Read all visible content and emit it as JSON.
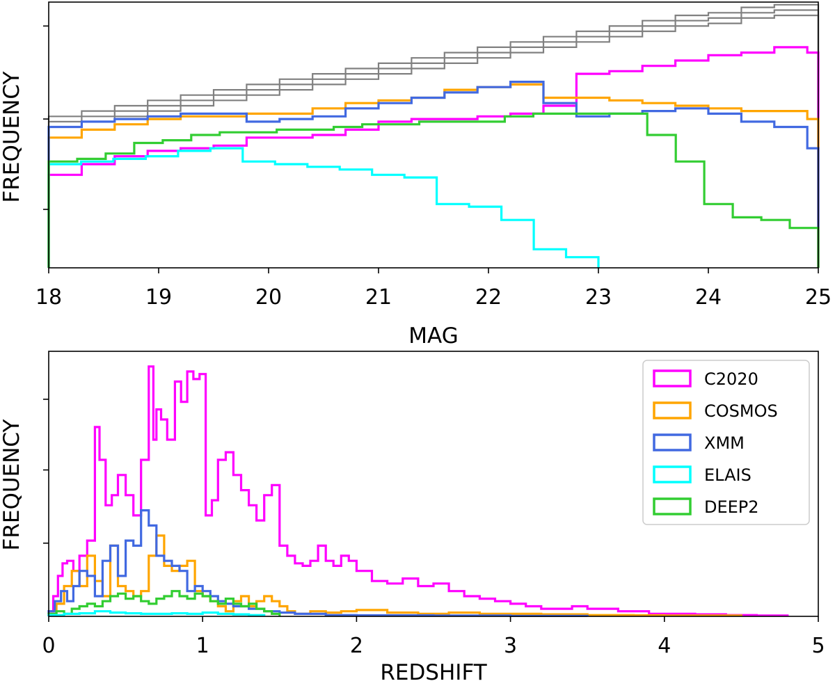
{
  "colors": {
    "C2020": "#ff00ff",
    "COSMOS": "#ffa500",
    "XMM": "#4169e1",
    "ELAIS": "#00ffff",
    "DEEP2": "#32cd32",
    "reference": "#808080"
  },
  "chart_data": [
    {
      "type": "step_histogram",
      "xlabel": "MAG",
      "ylabel": "FREQUENCY",
      "xlim": [
        18,
        25
      ],
      "ylim": [
        0,
        1
      ],
      "xticks": [
        "18",
        "19",
        "20",
        "21",
        "22",
        "23",
        "24",
        "25"
      ],
      "yticks_unlabeled": [
        0.22,
        0.56,
        0.91
      ],
      "bin_edges": [
        18,
        18.3,
        18.6,
        18.9,
        19.2,
        19.5,
        19.8,
        20.1,
        20.4,
        20.7,
        21.0,
        21.3,
        21.6,
        21.9,
        22.2,
        22.5,
        22.8,
        23.1,
        23.4,
        23.7,
        24.0,
        24.3,
        24.6,
        24.9,
        25.0
      ],
      "reference_lines": [
        {
          "offset": 0.02
        },
        {
          "offset": 0.0
        },
        {
          "offset": -0.02
        }
      ],
      "series": [
        {
          "name": "reference",
          "values": [
            0.55,
            0.57,
            0.59,
            0.61,
            0.63,
            0.65,
            0.67,
            0.69,
            0.71,
            0.73,
            0.75,
            0.77,
            0.79,
            0.81,
            0.83,
            0.85,
            0.87,
            0.89,
            0.91,
            0.93,
            0.94,
            0.96,
            0.97,
            0.97
          ]
        },
        {
          "name": "C2020",
          "values": [
            0.35,
            0.39,
            0.42,
            0.44,
            0.45,
            0.46,
            0.49,
            0.49,
            0.5,
            0.52,
            0.55,
            0.56,
            0.56,
            0.57,
            0.58,
            0.61,
            0.73,
            0.74,
            0.76,
            0.78,
            0.8,
            0.81,
            0.83,
            0.81
          ]
        },
        {
          "name": "COSMOS",
          "values": [
            0.49,
            0.52,
            0.54,
            0.56,
            0.57,
            0.57,
            0.58,
            0.58,
            0.6,
            0.62,
            0.63,
            0.64,
            0.67,
            0.68,
            0.69,
            0.64,
            0.64,
            0.63,
            0.62,
            0.61,
            0.6,
            0.59,
            0.59,
            0.56
          ]
        },
        {
          "name": "XMM",
          "values": [
            0.53,
            0.55,
            0.56,
            0.57,
            0.58,
            0.58,
            0.55,
            0.56,
            0.57,
            0.6,
            0.62,
            0.64,
            0.66,
            0.68,
            0.7,
            0.62,
            0.57,
            0.58,
            0.59,
            0.6,
            0.58,
            0.55,
            0.53,
            0.45
          ]
        },
        {
          "name": "ELAIS",
          "values": [
            0.39,
            0.4,
            0.41,
            0.42,
            0.44,
            0.45,
            0.4,
            0.39,
            0.38,
            0.37,
            0.35,
            0.34,
            0.24,
            0.23,
            0.18,
            0.07,
            0.04
          ]
        },
        {
          "name": "DEEP2",
          "values": [
            0.4,
            0.41,
            0.43,
            0.47,
            0.48,
            0.5,
            0.51,
            0.51,
            0.52,
            0.52,
            0.53,
            0.54,
            0.54,
            0.55,
            0.55,
            0.55,
            0.57,
            0.58,
            0.58,
            0.58,
            0.58,
            0.5,
            0.4,
            0.24,
            0.19,
            0.18,
            0.15
          ]
        }
      ]
    },
    {
      "type": "step_histogram",
      "xlabel": "REDSHIFT",
      "ylabel": "FREQUENCY",
      "xlim": [
        0,
        5
      ],
      "ylim": [
        0,
        1.05
      ],
      "xticks": [
        "0",
        "1",
        "2",
        "3",
        "4",
        "5"
      ],
      "yticks_unlabeled": [
        0.29,
        0.58,
        0.86
      ],
      "legend": {
        "position": "top-right",
        "entries": [
          "C2020",
          "COSMOS",
          "XMM",
          "ELAIS",
          "DEEP2"
        ]
      },
      "series": [
        {
          "name": "C2020",
          "x": [
            0.0,
            0.03,
            0.06,
            0.09,
            0.12,
            0.16,
            0.2,
            0.25,
            0.3,
            0.33,
            0.37,
            0.41,
            0.45,
            0.5,
            0.55,
            0.6,
            0.65,
            0.68,
            0.7,
            0.73,
            0.77,
            0.82,
            0.86,
            0.9,
            0.94,
            0.98,
            1.02,
            1.06,
            1.1,
            1.15,
            1.2,
            1.25,
            1.3,
            1.35,
            1.4,
            1.45,
            1.5,
            1.55,
            1.6,
            1.65,
            1.7,
            1.75,
            1.8,
            1.85,
            1.9,
            1.95,
            2.0,
            2.1,
            2.2,
            2.3,
            2.4,
            2.5,
            2.6,
            2.7,
            2.8,
            2.9,
            3.0,
            3.1,
            3.2,
            3.3,
            3.4,
            3.5,
            3.6,
            3.7,
            3.8,
            3.9,
            4.0,
            4.2,
            4.4,
            4.6,
            4.8
          ],
          "values": [
            0.02,
            0.08,
            0.16,
            0.21,
            0.22,
            0.18,
            0.24,
            0.3,
            0.75,
            0.62,
            0.44,
            0.48,
            0.56,
            0.48,
            0.4,
            0.62,
            0.99,
            0.7,
            0.82,
            0.78,
            0.7,
            0.93,
            0.85,
            0.97,
            0.94,
            0.96,
            0.4,
            0.46,
            0.62,
            0.65,
            0.56,
            0.5,
            0.44,
            0.38,
            0.48,
            0.52,
            0.28,
            0.24,
            0.21,
            0.2,
            0.22,
            0.28,
            0.22,
            0.2,
            0.24,
            0.22,
            0.18,
            0.14,
            0.13,
            0.15,
            0.12,
            0.13,
            0.1,
            0.08,
            0.07,
            0.06,
            0.05,
            0.04,
            0.03,
            0.03,
            0.04,
            0.03,
            0.03,
            0.02,
            0.02,
            0.01,
            0.01,
            0.008,
            0.005,
            0.003
          ]
        },
        {
          "name": "COSMOS",
          "x": [
            0.0,
            0.05,
            0.1,
            0.15,
            0.2,
            0.25,
            0.3,
            0.35,
            0.4,
            0.45,
            0.5,
            0.55,
            0.6,
            0.65,
            0.7,
            0.75,
            0.8,
            0.85,
            0.9,
            0.95,
            1.0,
            1.05,
            1.1,
            1.15,
            1.2,
            1.25,
            1.3,
            1.35,
            1.4,
            1.45,
            1.5,
            1.55,
            1.6,
            1.7,
            1.8,
            1.9,
            2.0,
            2.2,
            2.4,
            2.6,
            2.8,
            3.0,
            3.2,
            3.5,
            3.8,
            4.0,
            4.5
          ],
          "values": [
            0.01,
            0.05,
            0.12,
            0.18,
            0.12,
            0.24,
            0.14,
            0.08,
            0.28,
            0.12,
            0.1,
            0.08,
            0.1,
            0.24,
            0.32,
            0.2,
            0.18,
            0.2,
            0.22,
            0.1,
            0.08,
            0.06,
            0.04,
            0.02,
            0.06,
            0.08,
            0.04,
            0.06,
            0.08,
            0.06,
            0.04,
            0.02,
            0.01,
            0.02,
            0.015,
            0.02,
            0.025,
            0.015,
            0.01,
            0.015,
            0.01,
            0.01,
            0.008,
            0.005,
            0.004,
            0.003
          ]
        },
        {
          "name": "XMM",
          "x": [
            0.0,
            0.04,
            0.08,
            0.12,
            0.16,
            0.2,
            0.25,
            0.3,
            0.35,
            0.4,
            0.45,
            0.5,
            0.55,
            0.6,
            0.65,
            0.7,
            0.75,
            0.8,
            0.85,
            0.9,
            0.95,
            1.0,
            1.05,
            1.1,
            1.15,
            1.2,
            1.3,
            1.4,
            1.5,
            1.6,
            1.7,
            1.8,
            2.0,
            2.5,
            3.0,
            3.5
          ],
          "values": [
            0.02,
            0.06,
            0.1,
            0.06,
            0.12,
            0.18,
            0.16,
            0.08,
            0.22,
            0.28,
            0.16,
            0.3,
            0.28,
            0.42,
            0.36,
            0.24,
            0.22,
            0.2,
            0.18,
            0.1,
            0.12,
            0.1,
            0.08,
            0.06,
            0.05,
            0.04,
            0.03,
            0.02,
            0.015,
            0.01,
            0.01,
            0.005,
            0.004,
            0.003,
            0.002
          ]
        },
        {
          "name": "ELAIS",
          "x": [
            0.0,
            0.1,
            0.2,
            0.3,
            0.4,
            0.5,
            0.6,
            0.7,
            0.8,
            0.9,
            1.0,
            1.1,
            1.2,
            1.3,
            1.4
          ],
          "values": [
            0.005,
            0.01,
            0.012,
            0.02,
            0.015,
            0.012,
            0.01,
            0.01,
            0.012,
            0.01,
            0.015,
            0.01,
            0.008,
            0.005
          ]
        },
        {
          "name": "DEEP2",
          "x": [
            0.0,
            0.05,
            0.1,
            0.15,
            0.2,
            0.25,
            0.3,
            0.35,
            0.4,
            0.45,
            0.5,
            0.55,
            0.6,
            0.65,
            0.7,
            0.75,
            0.8,
            0.85,
            0.9,
            0.95,
            1.0,
            1.05,
            1.1,
            1.15,
            1.2,
            1.25,
            1.3,
            1.35,
            1.4,
            1.45,
            1.5
          ],
          "values": [
            0.01,
            0.02,
            0.01,
            0.03,
            0.04,
            0.05,
            0.04,
            0.06,
            0.08,
            0.09,
            0.07,
            0.08,
            0.06,
            0.05,
            0.07,
            0.08,
            0.1,
            0.08,
            0.07,
            0.09,
            0.08,
            0.06,
            0.05,
            0.07,
            0.05,
            0.04,
            0.05,
            0.03,
            0.02,
            0.01
          ]
        }
      ]
    }
  ]
}
